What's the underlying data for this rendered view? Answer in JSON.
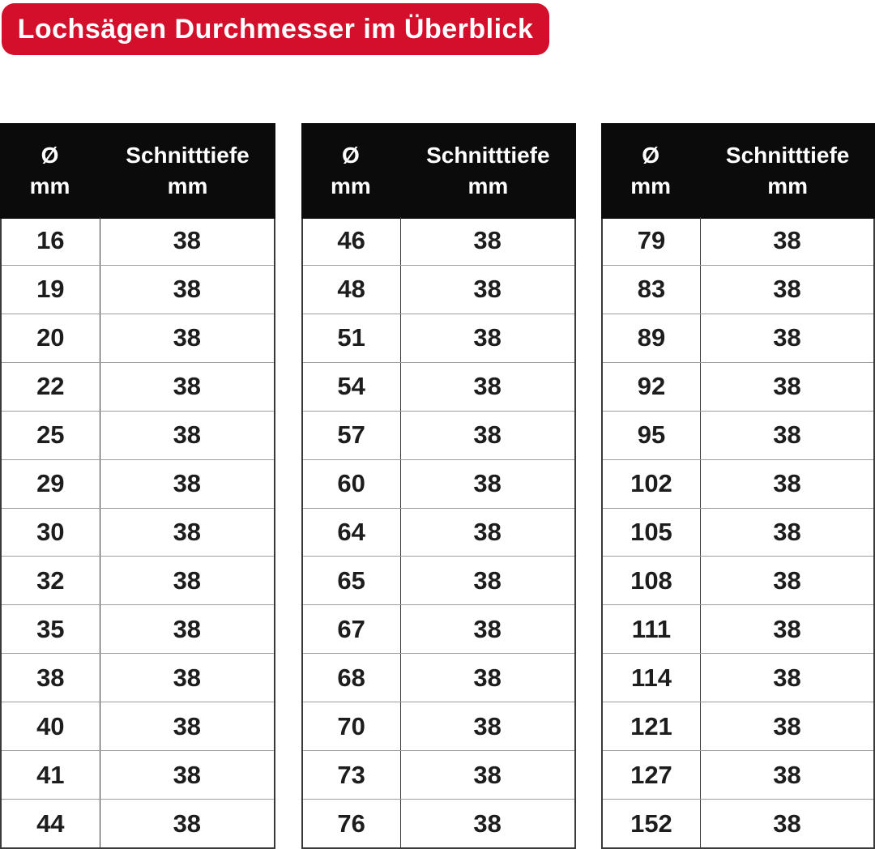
{
  "title": "Lochsägen Durchmesser im Überblick",
  "header": {
    "diameter_symbol": "Ø",
    "diameter_unit": "mm",
    "depth_label": "Schnitttiefe",
    "depth_unit": "mm"
  },
  "colors": {
    "badge_red": "#d30f2b",
    "header_black": "#0b0b0b",
    "row_separator_gray": "#9e9e9e",
    "column_separator_dark": "#3a3a3a",
    "text_dark": "#1d1d1d",
    "white": "#ffffff"
  },
  "chart_data": {
    "type": "table",
    "title": "Lochsägen Durchmesser im Überblick",
    "columns": [
      "Ø mm",
      "Schnitttiefe mm"
    ],
    "tables": [
      {
        "rows": [
          [
            "16",
            "38"
          ],
          [
            "19",
            "38"
          ],
          [
            "20",
            "38"
          ],
          [
            "22",
            "38"
          ],
          [
            "25",
            "38"
          ],
          [
            "29",
            "38"
          ],
          [
            "30",
            "38"
          ],
          [
            "32",
            "38"
          ],
          [
            "35",
            "38"
          ],
          [
            "38",
            "38"
          ],
          [
            "40",
            "38"
          ],
          [
            "41",
            "38"
          ],
          [
            "44",
            "38"
          ]
        ]
      },
      {
        "rows": [
          [
            "46",
            "38"
          ],
          [
            "48",
            "38"
          ],
          [
            "51",
            "38"
          ],
          [
            "54",
            "38"
          ],
          [
            "57",
            "38"
          ],
          [
            "60",
            "38"
          ],
          [
            "64",
            "38"
          ],
          [
            "65",
            "38"
          ],
          [
            "67",
            "38"
          ],
          [
            "68",
            "38"
          ],
          [
            "70",
            "38"
          ],
          [
            "73",
            "38"
          ],
          [
            "76",
            "38"
          ]
        ]
      },
      {
        "rows": [
          [
            "79",
            "38"
          ],
          [
            "83",
            "38"
          ],
          [
            "89",
            "38"
          ],
          [
            "92",
            "38"
          ],
          [
            "95",
            "38"
          ],
          [
            "102",
            "38"
          ],
          [
            "105",
            "38"
          ],
          [
            "108",
            "38"
          ],
          [
            "111",
            "38"
          ],
          [
            "114",
            "38"
          ],
          [
            "121",
            "38"
          ],
          [
            "127",
            "38"
          ],
          [
            "152",
            "38"
          ]
        ]
      }
    ]
  }
}
